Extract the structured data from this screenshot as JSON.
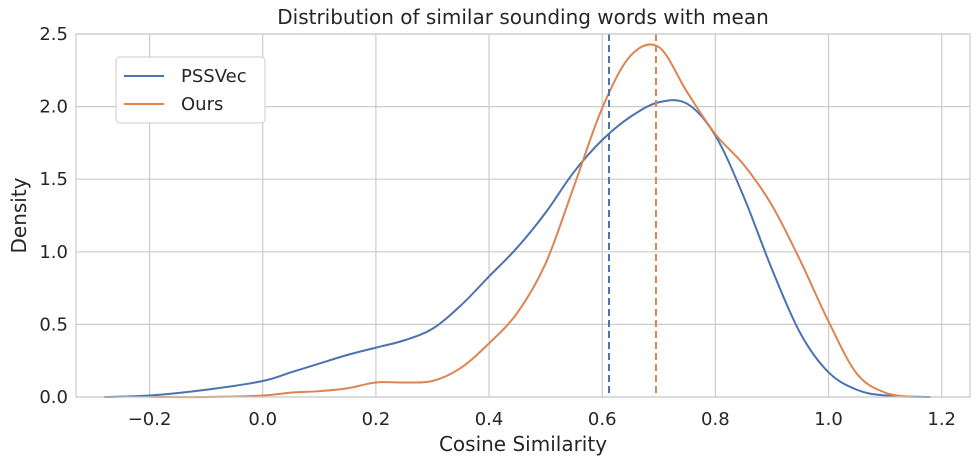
{
  "chart_data": {
    "type": "line",
    "title": "Distribution of similar sounding words with mean",
    "xlabel": "Cosine Similarity",
    "ylabel": "Density",
    "xlim": [
      -0.33,
      1.25
    ],
    "ylim": [
      0,
      2.5
    ],
    "xticks": [
      -0.2,
      0.0,
      0.2,
      0.4,
      0.6,
      0.8,
      1.0,
      1.2
    ],
    "xtick_labels": [
      "−0.2",
      "0.0",
      "0.2",
      "0.4",
      "0.6",
      "0.8",
      "1.0",
      "1.2"
    ],
    "yticks": [
      0.0,
      0.5,
      1.0,
      1.5,
      2.0,
      2.5
    ],
    "ytick_labels": [
      "0.0",
      "0.5",
      "1.0",
      "1.5",
      "2.0",
      "2.5"
    ],
    "grid": true,
    "legend_position": "top-left",
    "series": [
      {
        "name": "PSSVec",
        "color": "#4c72b0",
        "mean": 0.612,
        "points": [
          [
            -0.28,
            0.0
          ],
          [
            -0.2,
            0.01
          ],
          [
            -0.1,
            0.05
          ],
          [
            0.0,
            0.11
          ],
          [
            0.05,
            0.17
          ],
          [
            0.1,
            0.23
          ],
          [
            0.15,
            0.29
          ],
          [
            0.2,
            0.34
          ],
          [
            0.25,
            0.39
          ],
          [
            0.3,
            0.47
          ],
          [
            0.35,
            0.63
          ],
          [
            0.4,
            0.83
          ],
          [
            0.45,
            1.03
          ],
          [
            0.5,
            1.27
          ],
          [
            0.55,
            1.55
          ],
          [
            0.6,
            1.77
          ],
          [
            0.65,
            1.93
          ],
          [
            0.7,
            2.03
          ],
          [
            0.75,
            2.02
          ],
          [
            0.8,
            1.8
          ],
          [
            0.85,
            1.38
          ],
          [
            0.9,
            0.88
          ],
          [
            0.95,
            0.44
          ],
          [
            1.0,
            0.17
          ],
          [
            1.05,
            0.05
          ],
          [
            1.1,
            0.01
          ],
          [
            1.18,
            0.0
          ]
        ]
      },
      {
        "name": "Ours",
        "color": "#dd8452",
        "mean": 0.695,
        "points": [
          [
            -0.2,
            0.0
          ],
          [
            -0.1,
            0.0
          ],
          [
            0.0,
            0.01
          ],
          [
            0.05,
            0.03
          ],
          [
            0.1,
            0.04
          ],
          [
            0.15,
            0.06
          ],
          [
            0.2,
            0.1
          ],
          [
            0.25,
            0.1
          ],
          [
            0.3,
            0.11
          ],
          [
            0.35,
            0.2
          ],
          [
            0.4,
            0.37
          ],
          [
            0.45,
            0.58
          ],
          [
            0.5,
            0.92
          ],
          [
            0.55,
            1.45
          ],
          [
            0.6,
            1.99
          ],
          [
            0.65,
            2.35
          ],
          [
            0.7,
            2.41
          ],
          [
            0.75,
            2.1
          ],
          [
            0.8,
            1.81
          ],
          [
            0.85,
            1.6
          ],
          [
            0.9,
            1.32
          ],
          [
            0.95,
            0.94
          ],
          [
            1.0,
            0.52
          ],
          [
            1.05,
            0.16
          ],
          [
            1.1,
            0.03
          ],
          [
            1.15,
            0.0
          ]
        ]
      }
    ]
  }
}
